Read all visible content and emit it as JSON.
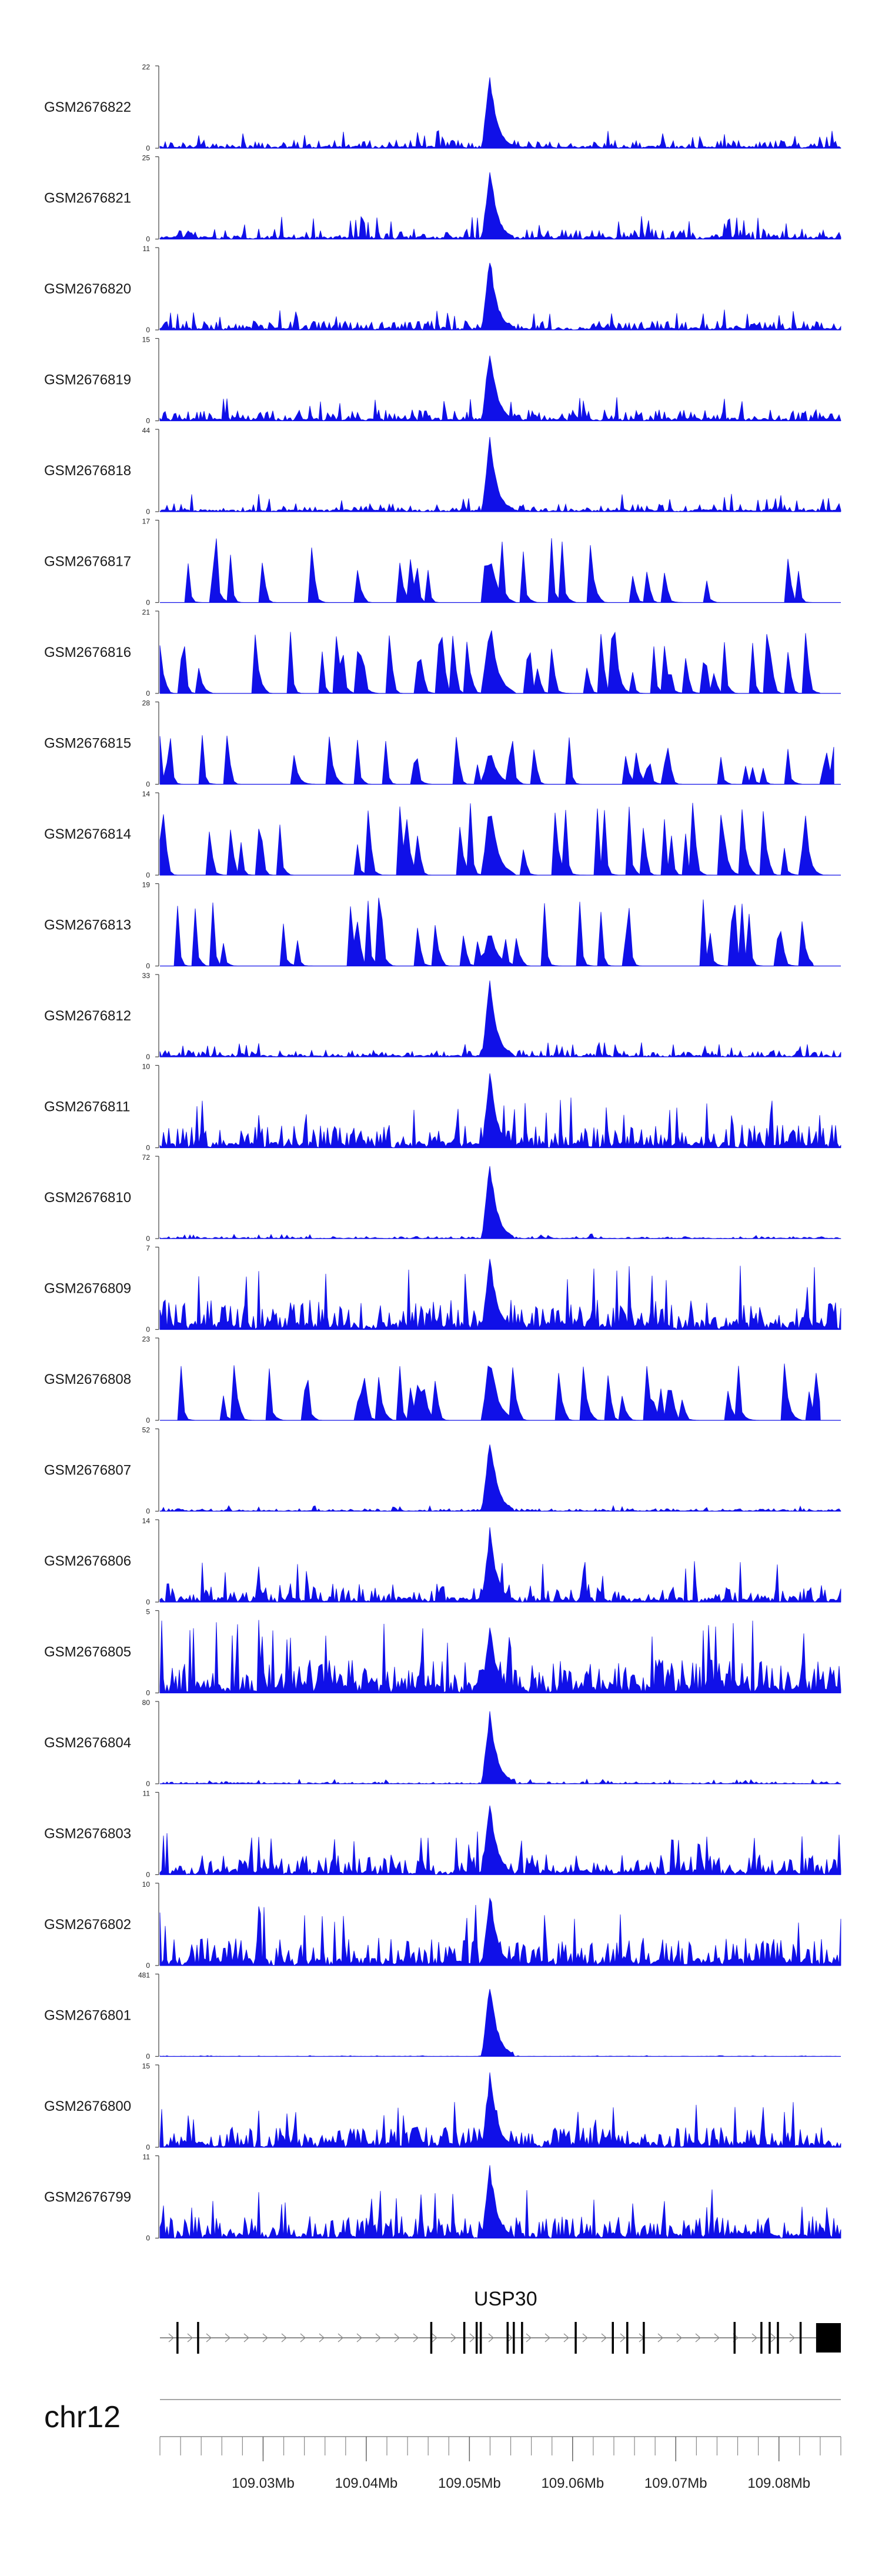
{
  "chart_data": {
    "type": "area",
    "title": "",
    "chromosome": "chr12",
    "xlim": [
      109020000,
      109086000
    ],
    "x_ticks": [
      "109.03Mb",
      "109.04Mb",
      "109.05Mb",
      "109.06Mb",
      "109.07Mb",
      "109.08Mb"
    ],
    "x_tick_values": [
      109030000,
      109040000,
      109050000,
      109060000,
      109070000,
      109080000
    ],
    "series_color": "#1010e8",
    "peak_position": 109052000,
    "tracks": [
      {
        "name": "GSM2676822",
        "ymax": "22",
        "ymin": "0",
        "max": 22,
        "profile": "peak",
        "peak_height": 0.95,
        "background": 0.22,
        "density": 0.8
      },
      {
        "name": "GSM2676821",
        "ymax": "25",
        "ymin": "0",
        "max": 25,
        "profile": "peak",
        "peak_height": 0.92,
        "background": 0.28,
        "density": 0.7
      },
      {
        "name": "GSM2676820",
        "ymax": "11",
        "ymin": "0",
        "max": 11,
        "profile": "peak",
        "peak_height": 0.95,
        "background": 0.25,
        "density": 0.95
      },
      {
        "name": "GSM2676819",
        "ymax": "15",
        "ymin": "0",
        "max": 15,
        "profile": "peak",
        "peak_height": 0.95,
        "background": 0.3,
        "density": 0.9
      },
      {
        "name": "GSM2676818",
        "ymax": "44",
        "ymin": "0",
        "max": 44,
        "profile": "peak",
        "peak_height": 0.95,
        "background": 0.22,
        "density": 0.6
      },
      {
        "name": "GSM2676817",
        "ymax": "17",
        "ymin": "0",
        "max": 17,
        "profile": "sparse",
        "peak_height": 0.6,
        "background": 0.85,
        "density": 0.45,
        "end": 0.97
      },
      {
        "name": "GSM2676816",
        "ymax": "21",
        "ymin": "0",
        "max": 21,
        "profile": "sparse",
        "peak_height": 0.95,
        "background": 0.75,
        "density": 0.5,
        "end": 0.97
      },
      {
        "name": "GSM2676815",
        "ymax": "28",
        "ymin": "0",
        "max": 28,
        "profile": "sparse",
        "peak_height": 0.5,
        "background": 0.6,
        "density": 0.35,
        "end": 0.99
      },
      {
        "name": "GSM2676814",
        "ymax": "14",
        "ymin": "0",
        "max": 14,
        "profile": "sparse",
        "peak_height": 1.0,
        "background": 0.9,
        "density": 0.55,
        "end": 0.99
      },
      {
        "name": "GSM2676813",
        "ymax": "19",
        "ymin": "0",
        "max": 19,
        "profile": "sparse",
        "peak_height": 0.5,
        "background": 0.85,
        "density": 0.42,
        "end": 0.96
      },
      {
        "name": "GSM2676812",
        "ymax": "33",
        "ymin": "0",
        "max": 33,
        "profile": "peak",
        "peak_height": 0.97,
        "background": 0.18,
        "density": 0.75
      },
      {
        "name": "GSM2676811",
        "ymax": "10",
        "ymin": "0",
        "max": 10,
        "profile": "dense",
        "peak_height": 0.97,
        "background": 0.62,
        "density": 0.9
      },
      {
        "name": "GSM2676810",
        "ymax": "72",
        "ymin": "0",
        "max": 72,
        "profile": "peak",
        "peak_height": 0.97,
        "background": 0.06,
        "density": 0.9
      },
      {
        "name": "GSM2676809",
        "ymax": "7",
        "ymin": "0",
        "max": 7,
        "profile": "dense",
        "peak_height": 0.97,
        "background": 0.8,
        "density": 0.95
      },
      {
        "name": "GSM2676808",
        "ymax": "23",
        "ymin": "0",
        "max": 23,
        "profile": "sparse",
        "peak_height": 0.9,
        "background": 0.7,
        "density": 0.55,
        "end": 0.97
      },
      {
        "name": "GSM2676807",
        "ymax": "52",
        "ymin": "0",
        "max": 52,
        "profile": "peak",
        "peak_height": 0.97,
        "background": 0.07,
        "density": 0.9
      },
      {
        "name": "GSM2676806",
        "ymax": "14",
        "ymin": "0",
        "max": 14,
        "profile": "dense",
        "peak_height": 0.95,
        "background": 0.5,
        "density": 0.8
      },
      {
        "name": "GSM2676805",
        "ymax": "5",
        "ymin": "0",
        "max": 5,
        "profile": "dense",
        "peak_height": 0.85,
        "background": 0.9,
        "density": 1.0
      },
      {
        "name": "GSM2676804",
        "ymax": "80",
        "ymin": "0",
        "max": 80,
        "profile": "peak",
        "peak_height": 0.97,
        "background": 0.06,
        "density": 0.9
      },
      {
        "name": "GSM2676803",
        "ymax": "11",
        "ymin": "0",
        "max": 11,
        "profile": "dense",
        "peak_height": 0.95,
        "background": 0.55,
        "density": 0.9
      },
      {
        "name": "GSM2676802",
        "ymax": "10",
        "ymin": "0",
        "max": 10,
        "profile": "dense",
        "peak_height": 0.95,
        "background": 0.75,
        "density": 0.85
      },
      {
        "name": "GSM2676801",
        "ymax": "481",
        "ymin": "0",
        "max": 481,
        "profile": "peak",
        "peak_height": 0.98,
        "background": 0.01,
        "density": 0.9
      },
      {
        "name": "GSM2676800",
        "ymax": "15",
        "ymin": "0",
        "max": 15,
        "profile": "dense",
        "peak_height": 0.95,
        "background": 0.55,
        "density": 0.9
      },
      {
        "name": "GSM2676799",
        "ymax": "11",
        "ymin": "0",
        "max": 11,
        "profile": "dense",
        "peak_height": 0.95,
        "background": 0.6,
        "density": 0.9
      }
    ],
    "gene": {
      "name": "USP30",
      "start": 109020000,
      "end": 109086000,
      "strand": "+",
      "exons": [
        {
          "start": 109021600,
          "end": 109021800
        },
        {
          "start": 109023600,
          "end": 109023800
        },
        {
          "start": 109046200,
          "end": 109046400
        },
        {
          "start": 109049400,
          "end": 109049600
        },
        {
          "start": 109050600,
          "end": 109050800
        },
        {
          "start": 109051000,
          "end": 109051200
        },
        {
          "start": 109053600,
          "end": 109053800
        },
        {
          "start": 109054200,
          "end": 109054400
        },
        {
          "start": 109055000,
          "end": 109055200
        },
        {
          "start": 109060200,
          "end": 109060400
        },
        {
          "start": 109063800,
          "end": 109064000
        },
        {
          "start": 109065200,
          "end": 109065400
        },
        {
          "start": 109066800,
          "end": 109067000
        },
        {
          "start": 109075600,
          "end": 109075800
        },
        {
          "start": 109078200,
          "end": 109078400
        },
        {
          "start": 109079000,
          "end": 109079200
        },
        {
          "start": 109079800,
          "end": 109080000
        },
        {
          "start": 109082000,
          "end": 109082200
        }
      ],
      "utr3": {
        "start": 109083600,
        "end": 109086000
      }
    }
  }
}
